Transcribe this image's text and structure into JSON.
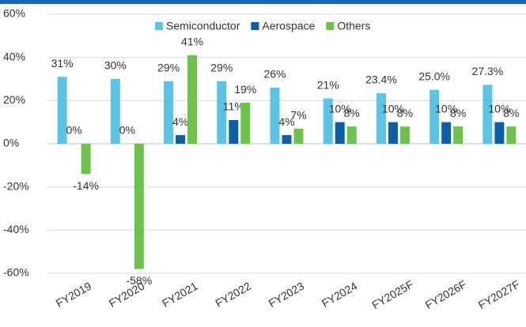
{
  "chart_data": {
    "type": "bar",
    "categories": [
      "FY2019",
      "FY2020",
      "FY2021",
      "FY2022",
      "FY2023",
      "FY2024",
      "FY2025F",
      "FY2026F",
      "FY2027F"
    ],
    "series": [
      {
        "name": "Semiconductor",
        "color": "#5bc4e6",
        "values": [
          31,
          30,
          29,
          29,
          26,
          21,
          23.4,
          25.0,
          27.3
        ],
        "value_labels": [
          "31%",
          "30%",
          "29%",
          "29%",
          "26%",
          "21%",
          "23.4%",
          "25.0%",
          "27.3%"
        ]
      },
      {
        "name": "Aerospace",
        "color": "#0b5fa5",
        "values": [
          0,
          0,
          4,
          11,
          4,
          10,
          10,
          10,
          10
        ],
        "value_labels": [
          "0%",
          "0%",
          "4%",
          "11%",
          "4%",
          "10%",
          "10%",
          "10%",
          "10%"
        ]
      },
      {
        "name": "Others",
        "color": "#6cc24a",
        "values": [
          -14,
          -58,
          41,
          19,
          7,
          8,
          8,
          8,
          8
        ],
        "value_labels": [
          "-14%",
          "-58%",
          "41%",
          "19%",
          "7%",
          "8%",
          "8%",
          "8%",
          "8%"
        ]
      }
    ],
    "ylim": [
      -60,
      60
    ],
    "yticks": [
      {
        "value": -60,
        "label": "-60%"
      },
      {
        "value": -40,
        "label": "-40%"
      },
      {
        "value": -20,
        "label": "-20%"
      },
      {
        "value": 0,
        "label": "0%"
      },
      {
        "value": 20,
        "label": "20%"
      },
      {
        "value": 40,
        "label": "40%"
      },
      {
        "value": 60,
        "label": "60%"
      }
    ],
    "grid": true
  }
}
